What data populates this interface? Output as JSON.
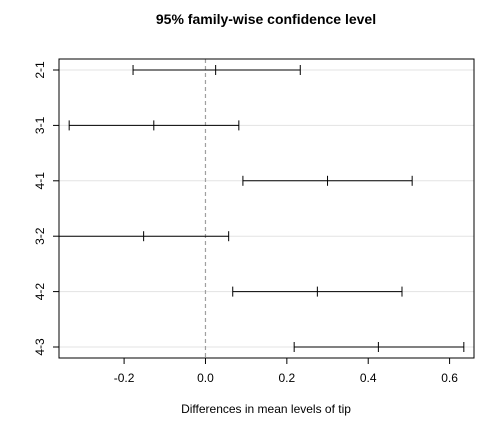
{
  "chart_data": {
    "type": "interval",
    "title": "95% family-wise confidence level",
    "xlabel": "Differences in mean levels of tip",
    "ylabel": "",
    "xlim": [
      -0.36,
      0.66
    ],
    "xticks": [
      -0.2,
      0.0,
      0.2,
      0.4,
      0.6
    ],
    "xtick_labels": [
      "-0.2",
      "0.0",
      "0.2",
      "0.4",
      "0.6"
    ],
    "reference_line": 0,
    "reference_line_style": "dashed",
    "grid": "horizontal",
    "comparisons": [
      {
        "label": "2-1",
        "lower": -0.178,
        "estimate": 0.025,
        "upper": 0.233
      },
      {
        "label": "3-1",
        "lower": -0.335,
        "estimate": -0.127,
        "upper": 0.082
      },
      {
        "label": "4-1",
        "lower": 0.092,
        "estimate": 0.3,
        "upper": 0.508
      },
      {
        "label": "3-2",
        "lower": -0.36,
        "estimate": -0.152,
        "upper": 0.057
      },
      {
        "label": "4-2",
        "lower": 0.067,
        "estimate": 0.275,
        "upper": 0.483
      },
      {
        "label": "4-3",
        "lower": 0.218,
        "estimate": 0.425,
        "upper": 0.635
      }
    ]
  }
}
